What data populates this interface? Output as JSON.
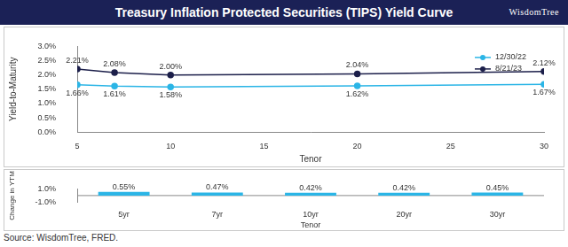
{
  "header": {
    "title": "Treasury Inflation Protected Securities (TIPS) Yield Curve",
    "logo": "WisdomTree"
  },
  "source": "Source: WisdomTree, FRED.",
  "chart_data": [
    {
      "type": "line",
      "x": [
        5,
        7,
        10,
        20,
        30
      ],
      "xlabel": "Tenor",
      "ylabel": "Yield-to-Maturity",
      "xlim": [
        5,
        30
      ],
      "xticks": [
        5,
        10,
        15,
        20,
        25,
        30
      ],
      "ylim": [
        0,
        3
      ],
      "yticks": [
        {
          "value": 0,
          "label": "0.0%"
        },
        {
          "value": 0.5,
          "label": "0.5%"
        },
        {
          "value": 1,
          "label": "1.0%"
        },
        {
          "value": 1.5,
          "label": "1.5%"
        },
        {
          "value": 2,
          "label": "2.0%"
        },
        {
          "value": 2.5,
          "label": "2.5%"
        },
        {
          "value": 3,
          "label": "3.0%"
        }
      ],
      "grid": false,
      "legend": "upper right",
      "data_labels": true,
      "series": [
        {
          "name": "12/30/22",
          "color": "#2bb5e6",
          "marker": "circle",
          "line_style": "solid",
          "values": [
            1.66,
            1.61,
            1.58,
            1.62,
            1.67
          ],
          "value_labels": [
            "1.66%",
            "1.61%",
            "1.58%",
            "1.62%",
            "1.67%"
          ]
        },
        {
          "name": "8/21/23",
          "color": "#1c1f4a",
          "marker": "circle",
          "line_style": "solid",
          "values": [
            2.21,
            2.08,
            2.0,
            2.04,
            2.12
          ],
          "value_labels": [
            "2.21%",
            "2.08%",
            "2.00%",
            "2.04%",
            "2.12%"
          ]
        }
      ]
    },
    {
      "type": "bar",
      "categories": [
        "5yr",
        "7yr",
        "10yr",
        "20yr",
        "30yr"
      ],
      "xlabel": "Tenor",
      "ylabel": "Change in YTM",
      "values": [
        0.55,
        0.47,
        0.42,
        0.42,
        0.45
      ],
      "value_labels": [
        "0.55%",
        "0.47%",
        "0.42%",
        "0.42%",
        "0.45%"
      ],
      "color": "#2bb5e6",
      "ylim": [
        -1,
        1
      ],
      "yticks": [
        {
          "value": -1,
          "label": "-1.0%"
        },
        {
          "value": 1,
          "label": "1.0%"
        }
      ],
      "grid": false,
      "data_labels": true
    }
  ]
}
